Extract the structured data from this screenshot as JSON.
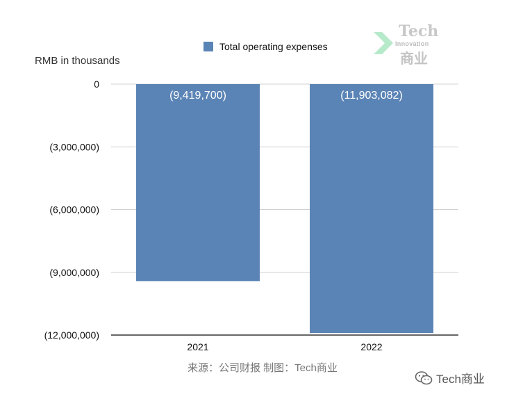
{
  "legend": {
    "label": "Total operating expenses",
    "color": "#5b84b6"
  },
  "y_unit_label": "RMB in thousands",
  "source_note": "来源：公司财报 制图：Tech商业",
  "logo": {
    "line1": "Tech",
    "line2": "Innovation",
    "line3": "商业"
  },
  "watermark": {
    "text": "Tech商业",
    "icon": "wechat-icon"
  },
  "chart_data": {
    "type": "bar",
    "categories": [
      "2021",
      "2022"
    ],
    "series": [
      {
        "name": "Total operating expenses",
        "values": [
          -9419700,
          -11903082
        ],
        "color": "#5b84b6"
      }
    ],
    "data_labels": [
      "(9,419,700)",
      "(11,903,082)"
    ],
    "ylabel": "RMB in thousands",
    "ylim": [
      -12000000,
      0
    ],
    "yticks": [
      0,
      -3000000,
      -6000000,
      -9000000,
      -12000000
    ],
    "ytick_labels": [
      "0",
      "(3,000,000)",
      "(6,000,000)",
      "(9,000,000)",
      "(12,000,000)"
    ],
    "grid": true,
    "legend_position": "top"
  }
}
